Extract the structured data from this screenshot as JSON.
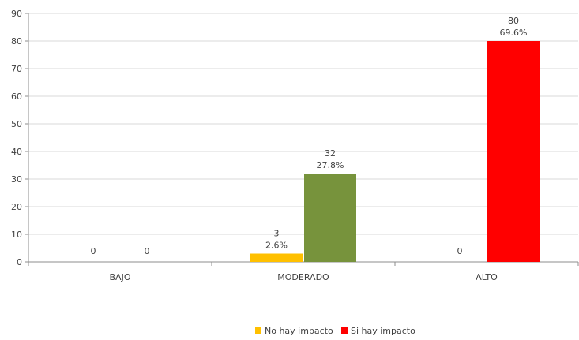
{
  "chart_data": {
    "type": "bar",
    "categories": [
      "BAJO",
      "MODERADO",
      "ALTO"
    ],
    "series": [
      {
        "name": "No hay impacto",
        "color": "#ffc000",
        "values": [
          0,
          3,
          0
        ],
        "percent_labels": [
          "",
          "2.6%",
          ""
        ]
      },
      {
        "name": "Si hay impacto",
        "colors_by_category": [
          "#77933c",
          "#77933c",
          "#ff0000"
        ],
        "values": [
          0,
          32,
          80
        ],
        "percent_labels": [
          "",
          "27.8%",
          "69.6%"
        ]
      }
    ],
    "legend_colors": [
      "#ffc000",
      "#ff0000"
    ],
    "ylim": [
      0,
      90
    ],
    "yticks": [
      0,
      10,
      20,
      30,
      40,
      50,
      60,
      70,
      80,
      90
    ],
    "grid": true,
    "legend_position": "bottom",
    "title": "",
    "xlabel": "",
    "ylabel": ""
  }
}
